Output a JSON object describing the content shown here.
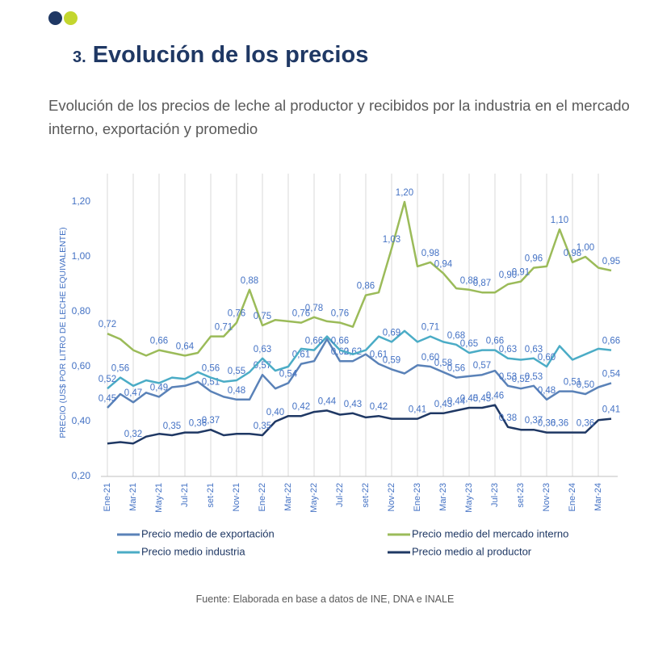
{
  "header": {
    "number": "3.",
    "title": "Evolución de los precios",
    "intro": "Evolución de los precios de leche al productor y recibidos por la industria en el mercado interno, exportación y promedio"
  },
  "chart_data": {
    "type": "line",
    "ylabel": "PRECIO (US$ POR LITRO DE LECHE EQUIVALENTE)",
    "categories": [
      "Ene-21",
      null,
      "Mar-21",
      null,
      "May-21",
      null,
      "Jul-21",
      null,
      "set-21",
      null,
      "Nov-21",
      null,
      "Ene-22",
      null,
      "Mar-22",
      null,
      "May-22",
      null,
      "Jul-22",
      null,
      "set-22",
      null,
      "Nov-22",
      null,
      "Ene-23",
      null,
      "Mar-23",
      null,
      "May-23",
      null,
      "Jul-23",
      null,
      "set-23",
      null,
      "Nov-23",
      null,
      "Ene-24",
      null,
      "Mar-24",
      null
    ],
    "ylim": [
      0.2,
      1.2
    ],
    "yticks": [
      {
        "value": 0.2,
        "label": "0,20"
      },
      {
        "value": 0.4,
        "label": "0,40"
      },
      {
        "value": 0.6,
        "label": "0,60"
      },
      {
        "value": 0.8,
        "label": "0,80"
      },
      {
        "value": 1.0,
        "label": "1,00"
      },
      {
        "value": 1.2,
        "label": "1,20"
      }
    ],
    "series": [
      {
        "name": "Precio medio de exportación",
        "color": "#5a82b8",
        "values": [
          0.45,
          0.5,
          0.47,
          0.505,
          0.49,
          0.525,
          0.53,
          0.545,
          0.51,
          0.49,
          0.48,
          0.48,
          0.57,
          0.52,
          0.54,
          0.61,
          0.62,
          0.7,
          0.62,
          0.62,
          0.645,
          0.61,
          0.59,
          0.575,
          0.605,
          0.6,
          0.58,
          0.56,
          0.565,
          0.57,
          0.585,
          0.53,
          0.52,
          0.53,
          0.48,
          0.51,
          0.51,
          0.5,
          0.525,
          0.54
        ],
        "value_labels": [
          "0,45",
          null,
          "0,47",
          null,
          "0,49",
          null,
          null,
          null,
          "0,51",
          null,
          "0,48",
          null,
          "0,57",
          null,
          "0,54",
          "0,61",
          null,
          null,
          "0,62",
          "0,62",
          null,
          "0,61",
          "0,59",
          null,
          null,
          "0,60",
          "0,58",
          "0,56",
          null,
          "0,57",
          null,
          "0,53",
          "0,52",
          "0,53",
          "0,48",
          null,
          "0,51",
          "0,50",
          null,
          "0,54"
        ]
      },
      {
        "name": "Precio medio del mercado interno",
        "color": "#9bbb59",
        "values": [
          0.72,
          0.7,
          0.66,
          0.64,
          0.66,
          0.65,
          0.64,
          0.65,
          0.71,
          0.71,
          0.76,
          0.88,
          0.75,
          0.77,
          0.765,
          0.76,
          0.78,
          0.765,
          0.76,
          0.745,
          0.86,
          0.87,
          1.03,
          1.2,
          0.965,
          0.98,
          0.94,
          0.885,
          0.88,
          0.87,
          0.87,
          0.9,
          0.91,
          0.96,
          0.965,
          1.1,
          0.98,
          1.0,
          0.96,
          0.95
        ],
        "value_labels": [
          "0,72",
          null,
          null,
          null,
          "0,66",
          null,
          "0,64",
          null,
          null,
          "0,71",
          "0,76",
          "0,88",
          "0,75",
          null,
          null,
          "0,76",
          "0,78",
          null,
          "0,76",
          null,
          "0,86",
          null,
          "1,03",
          "1,20",
          null,
          "0,98",
          "0,94",
          null,
          "0,88",
          "0,87",
          null,
          "0,90",
          "0,91",
          "0,96",
          null,
          "1,10",
          "0,98",
          "1,00",
          null,
          "0,95"
        ]
      },
      {
        "name": "Precio medio industria",
        "color": "#4bacc6",
        "values": [
          0.52,
          0.56,
          0.53,
          0.55,
          0.54,
          0.56,
          0.555,
          0.58,
          0.56,
          0.545,
          0.55,
          0.58,
          0.63,
          0.585,
          0.6,
          0.665,
          0.66,
          0.71,
          0.66,
          0.645,
          0.66,
          0.71,
          0.69,
          0.73,
          0.69,
          0.71,
          0.69,
          0.68,
          0.65,
          0.66,
          0.66,
          0.63,
          0.625,
          0.63,
          0.6,
          0.675,
          0.625,
          0.645,
          0.665,
          0.66
        ],
        "value_labels": [
          "0,52",
          "0,56",
          null,
          null,
          null,
          null,
          null,
          null,
          "0,56",
          null,
          "0,55",
          null,
          "0,63",
          null,
          null,
          null,
          "0,66",
          null,
          "0,66",
          null,
          null,
          null,
          "0,69",
          null,
          null,
          "0,71",
          null,
          "0,68",
          "0,65",
          null,
          "0,66",
          "0,63",
          null,
          "0,63",
          "0,60",
          null,
          null,
          null,
          null,
          "0,66"
        ]
      },
      {
        "name": "Precio medio al productor",
        "color": "#1f3864",
        "values": [
          0.32,
          0.325,
          0.32,
          0.345,
          0.355,
          0.35,
          0.36,
          0.36,
          0.37,
          0.35,
          0.355,
          0.355,
          0.35,
          0.4,
          0.42,
          0.42,
          0.435,
          0.44,
          0.425,
          0.43,
          0.415,
          0.42,
          0.41,
          0.41,
          0.41,
          0.43,
          0.43,
          0.44,
          0.45,
          0.45,
          0.46,
          0.38,
          0.37,
          0.37,
          0.36,
          0.36,
          0.36,
          0.36,
          0.405,
          0.41
        ],
        "value_labels": [
          null,
          null,
          "0,32",
          null,
          null,
          "0,35",
          null,
          "0,36",
          "0,37",
          null,
          null,
          null,
          "0,35",
          "0,40",
          null,
          "0,42",
          null,
          "0,44",
          null,
          "0,43",
          null,
          "0,42",
          null,
          null,
          "0,41",
          null,
          "0,43",
          "0,44",
          "0,45",
          "0,45",
          "0,46",
          "0,38",
          null,
          "0,37",
          "0,36",
          "0,36",
          null,
          "0,36",
          null,
          "0,41"
        ]
      }
    ]
  },
  "source": "Fuente: Elaborada en base a datos de INE, DNA e INALE"
}
